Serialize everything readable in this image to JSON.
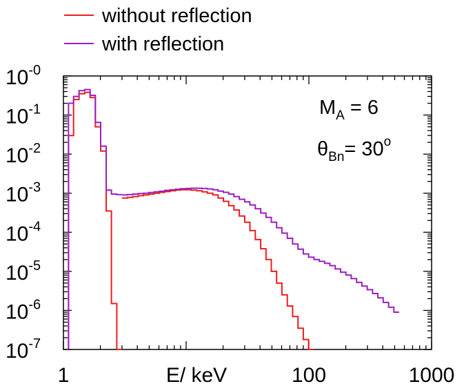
{
  "chart_data": {
    "type": "line",
    "title": "",
    "xlabel": "E/ keV",
    "ylabel": "",
    "xscale": "log",
    "yscale": "log",
    "xlim": [
      1,
      1000
    ],
    "ylim": [
      1e-07,
      1
    ],
    "grid": false,
    "legend_position": "top-left",
    "x_tick_labels": [
      "1",
      "100",
      "1000"
    ],
    "y_tick_labels": [
      {
        "base": "10",
        "exp": "-0"
      },
      {
        "base": "10",
        "exp": "-1"
      },
      {
        "base": "10",
        "exp": "-2"
      },
      {
        "base": "10",
        "exp": "-3"
      },
      {
        "base": "10",
        "exp": "-4"
      },
      {
        "base": "10",
        "exp": "-5"
      },
      {
        "base": "10",
        "exp": "-6"
      },
      {
        "base": "10",
        "exp": "-7"
      }
    ],
    "annotations": {
      "mach_main": "M",
      "mach_sub": "A",
      "mach_value": " = 6",
      "theta_main": "θ",
      "theta_sub": "Bn",
      "theta_value": "= 30",
      "theta_sup": "o"
    },
    "series": [
      {
        "name": "without reflection",
        "color": "#ee1c1c",
        "step_edges": [
          1.1,
          1.21,
          1.34,
          1.49,
          1.65,
          1.82,
          2.01,
          2.23,
          2.46,
          2.72,
          3.0
        ],
        "values": [
          0.03,
          0.25,
          0.35,
          0.38,
          0.28,
          0.05,
          0.012,
          0.00035,
          1.5e-06,
          1e-07
        ],
        "tail_edges": [
          3.0,
          3.32,
          3.67,
          4.06,
          4.49,
          4.96,
          5.48,
          6.06,
          6.7,
          7.4,
          8.2,
          9.0,
          10.0,
          11.0,
          12.2,
          13.5,
          14.9,
          16.5,
          18.2,
          20.1,
          22.2,
          24.5,
          27.1,
          30.0,
          33.1,
          36.6,
          40.5,
          44.7,
          49.4,
          54.6,
          60.3,
          66.7,
          73.7,
          81.5,
          90.0,
          99.5,
          110.0
        ],
        "tail_values": [
          0.00075,
          0.00078,
          0.00082,
          0.00086,
          0.0009,
          0.00095,
          0.001,
          0.00105,
          0.0011,
          0.00115,
          0.0012,
          0.00122,
          0.00122,
          0.0012,
          0.00115,
          0.00108,
          0.001,
          0.0009,
          0.00075,
          0.00062,
          0.00048,
          0.00037,
          0.00026,
          0.00018,
          0.00011,
          6.5e-05,
          3.8e-05,
          2e-05,
          1e-05,
          5e-06,
          2.5e-06,
          1.3e-06,
          7e-07,
          3.5e-07,
          1.8e-07,
          1e-07
        ]
      },
      {
        "name": "with reflection",
        "color": "#9b1fbf",
        "step_edges": [
          1.1,
          1.21,
          1.34,
          1.49,
          1.65,
          1.82,
          2.01,
          2.23,
          2.46,
          2.72,
          3.0
        ],
        "values": [
          0.2,
          0.3,
          0.42,
          0.45,
          0.32,
          0.065,
          0.016,
          0.0012,
          0.00095,
          0.00092
        ],
        "tail_edges": [
          3.0,
          3.32,
          3.67,
          4.06,
          4.49,
          4.96,
          5.48,
          6.06,
          6.7,
          7.4,
          8.2,
          9.0,
          10.0,
          11.0,
          12.2,
          13.5,
          14.9,
          16.5,
          18.2,
          20.1,
          22.2,
          24.5,
          27.1,
          30.0,
          33.1,
          36.6,
          40.5,
          44.7,
          49.4,
          54.6,
          60.3,
          66.7,
          73.7,
          81.5,
          90.0,
          99.5,
          110.0,
          121.5,
          134.3,
          148.4,
          164.0,
          181.3,
          200.3,
          221.4,
          244.7,
          270.4,
          298.9,
          330.3,
          365.0,
          403.4,
          445.9,
          492.7,
          544.6
        ],
        "tail_values": [
          0.0009,
          0.00092,
          0.00095,
          0.00098,
          0.001,
          0.00104,
          0.00108,
          0.00112,
          0.00118,
          0.00122,
          0.00126,
          0.0013,
          0.00132,
          0.00134,
          0.00134,
          0.00132,
          0.00128,
          0.00122,
          0.00113,
          0.00105,
          0.00095,
          0.00082,
          0.0007,
          0.0006,
          0.0005,
          0.0004,
          0.00031,
          0.00024,
          0.00018,
          0.00013,
          9.5e-05,
          7e-05,
          5e-05,
          3.7e-05,
          2.8e-05,
          2.3e-05,
          2e-05,
          1.8e-05,
          1.6e-05,
          1.4e-05,
          1.15e-05,
          9.5e-06,
          8e-06,
          6.5e-06,
          5.2e-06,
          4.2e-06,
          3.4e-06,
          2.7e-06,
          2.1e-06,
          1.6e-06,
          1.2e-06,
          9e-07
        ]
      }
    ]
  }
}
